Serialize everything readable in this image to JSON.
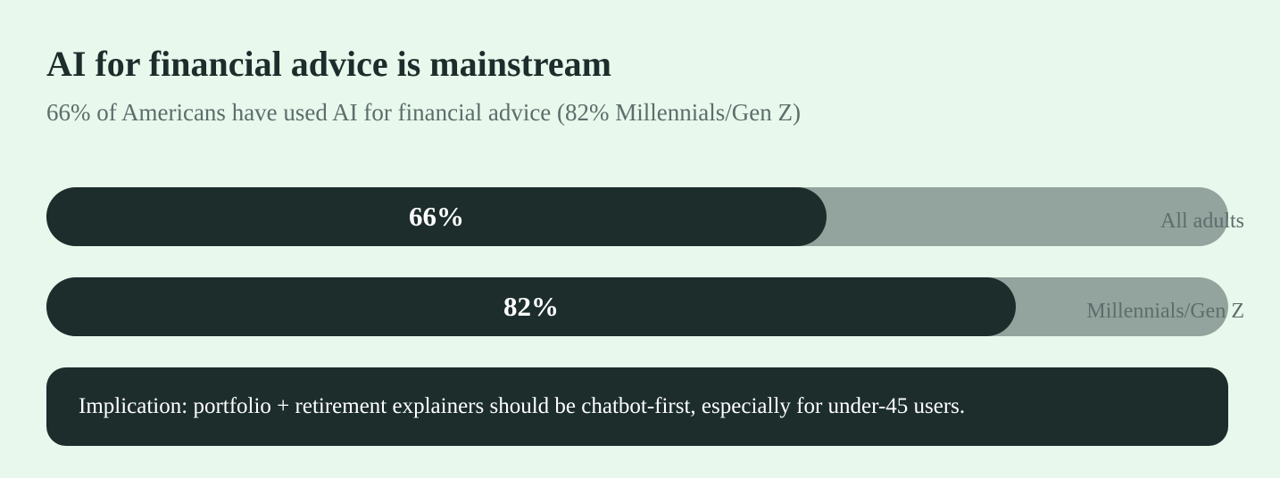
{
  "title": "AI for financial advice is mainstream",
  "subtitle": "66% of Americans have used AI for financial advice (82% Millennials/Gen Z)",
  "implication": "Implication: portfolio + retirement explainers should be chatbot-first, especially for under-45 users.",
  "colors": {
    "background": "#e8f8ec",
    "bar_fill": "#1c2d2c",
    "bar_track": "#93a39d",
    "muted_text": "#5c6e6b"
  },
  "chart_data": {
    "type": "bar",
    "orientation": "horizontal",
    "ylim": [
      0,
      100
    ],
    "unit": "%",
    "categories": [
      "All adults",
      "Millennials/Gen Z"
    ],
    "values": [
      66,
      82
    ],
    "value_labels": [
      "66%",
      "82%"
    ],
    "grid": false
  }
}
